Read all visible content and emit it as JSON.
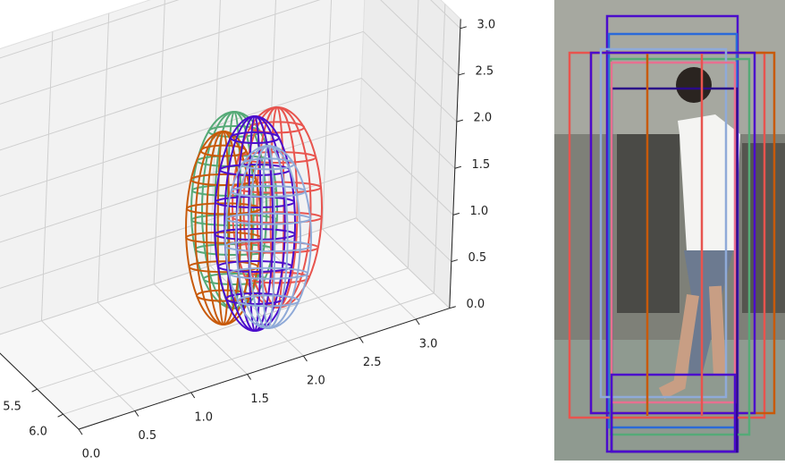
{
  "chart_data": {
    "type": "wireframe3d",
    "xlim": [
      0,
      3.3
    ],
    "xticks": [
      {
        "value": 0,
        "label": "0.0"
      },
      0.5,
      {
        "value": 1,
        "label": "1.0"
      },
      1.5,
      {
        "value": 2,
        "label": "2.0"
      },
      2.5,
      {
        "value": 3,
        "label": "3.0"
      }
    ],
    "ylim": [
      4.5,
      6.3
    ],
    "yticks": [
      5.5,
      {
        "value": 6,
        "label": "6.0"
      }
    ],
    "zlim": [
      0,
      3.1
    ],
    "zticks": [
      {
        "value": 0,
        "label": "0.0"
      },
      0.5,
      {
        "value": 1,
        "label": "1.0"
      },
      1.5,
      {
        "value": 2,
        "label": "2.0"
      },
      2.5,
      {
        "value": 3,
        "label": "3.0"
      }
    ],
    "grid": true
  }
}
